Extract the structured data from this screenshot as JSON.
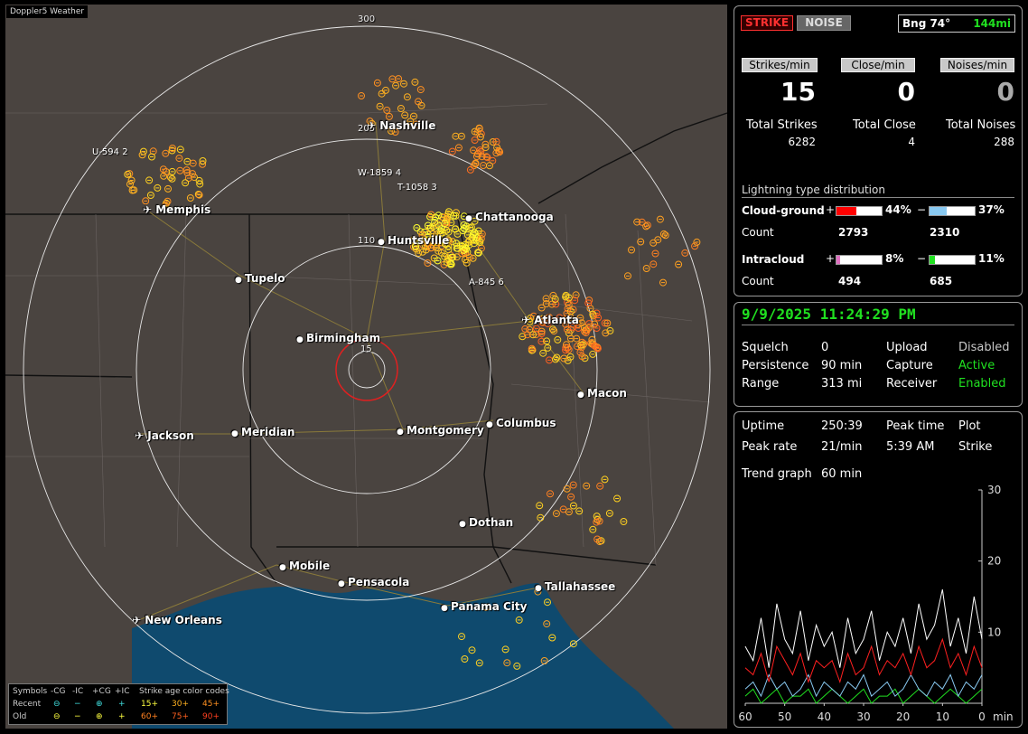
{
  "app_title": "Doppler5 Weather",
  "map": {
    "range_labels": [
      "300",
      "205",
      "110",
      "15"
    ],
    "cities": [
      {
        "name": "Nashville",
        "type": "airport"
      },
      {
        "name": "Memphis",
        "type": "airport"
      },
      {
        "name": "Chattanooga",
        "type": "city"
      },
      {
        "name": "Huntsville",
        "type": "city"
      },
      {
        "name": "Tupelo",
        "type": "city"
      },
      {
        "name": "Atlanta",
        "type": "airport"
      },
      {
        "name": "Birmingham",
        "type": "city"
      },
      {
        "name": "Macon",
        "type": "city"
      },
      {
        "name": "Jackson",
        "type": "airport"
      },
      {
        "name": "Meridian",
        "type": "city"
      },
      {
        "name": "Montgomery",
        "type": "city"
      },
      {
        "name": "Columbus",
        "type": "city"
      },
      {
        "name": "Dothan",
        "type": "city"
      },
      {
        "name": "Mobile",
        "type": "city"
      },
      {
        "name": "Pensacola",
        "type": "city"
      },
      {
        "name": "Tallahassee",
        "type": "city"
      },
      {
        "name": "Panama City",
        "type": "city"
      },
      {
        "name": "New Orleans",
        "type": "airport"
      }
    ],
    "storm_tags": [
      "U-594 2",
      "W-1859 4",
      "T-1058 3",
      "A-845 6"
    ]
  },
  "legend": {
    "headers": [
      "Symbols",
      "-CG",
      "-IC",
      "+CG",
      "+IC",
      "Strike age color codes"
    ],
    "rows": [
      {
        "label": "Recent",
        "ages": [
          "15+",
          "30+",
          "45+"
        ]
      },
      {
        "label": "Old",
        "ages": [
          "60+",
          "75+",
          "90+"
        ]
      }
    ]
  },
  "top_panel": {
    "strike_btn": "STRIKE",
    "noise_btn": "NOISE",
    "bearing_label": "Bng 74°",
    "bearing_range": "144mi",
    "headers": [
      "Strikes/min",
      "Close/min",
      "Noises/min"
    ],
    "rates": [
      "15",
      "0",
      "0"
    ],
    "totals_labels": [
      "Total Strikes",
      "Total Close",
      "Total Noises"
    ],
    "totals_values": [
      "6282",
      "4",
      "288"
    ],
    "dist_title": "Lightning type distribution",
    "cloud_ground_label": "Cloud-ground",
    "cg_pos_pct": "44%",
    "cg_neg_pct": "37%",
    "count_label": "Count",
    "cg_pos_count": "2793",
    "cg_neg_count": "2310",
    "intracloud_label": "Intracloud",
    "ic_pos_pct": "8%",
    "ic_neg_pct": "11%",
    "ic_pos_count": "494",
    "ic_neg_count": "685",
    "bars": {
      "cg_pos": 0.44,
      "cg_neg": 0.37,
      "ic_pos": 0.08,
      "ic_neg": 0.11
    },
    "colors": {
      "cg_pos": "#ff0000",
      "cg_neg": "#88c8f0",
      "ic_pos": "#e070c0",
      "ic_neg": "#20e020"
    }
  },
  "mid_panel": {
    "datetime": "9/9/2025 11:24:29 PM",
    "items": [
      {
        "label": "Squelch",
        "value": "0",
        "label2": "Upload",
        "value2": "Disabled",
        "color2": "#c8c8c8"
      },
      {
        "label": "Persistence",
        "value": "90 min",
        "label2": "Capture",
        "value2": "Active",
        "color2": "#20e020"
      },
      {
        "label": "Range",
        "value": "313 mi",
        "label2": "Receiver",
        "value2": "Enabled",
        "color2": "#20e020"
      }
    ]
  },
  "bot_panel": {
    "uptime_label": "Uptime",
    "uptime_value": "250:39",
    "peak_time_label": "Peak time",
    "plot_label": "Plot",
    "peak_rate_label": "Peak rate",
    "peak_rate_value": "21/min",
    "peak_time_value": "5:39 AM",
    "plot_value": "Strike",
    "trend_label": "Trend graph",
    "trend_value": "60 min",
    "y_ticks": [
      "30",
      "20",
      "10"
    ],
    "x_ticks": [
      "60",
      "50",
      "40",
      "30",
      "20",
      "10",
      "0"
    ],
    "x_unit": "min"
  },
  "chart_data": {
    "type": "line",
    "x": [
      60,
      58,
      56,
      54,
      52,
      50,
      48,
      46,
      44,
      42,
      40,
      38,
      36,
      34,
      32,
      30,
      28,
      26,
      24,
      22,
      20,
      18,
      16,
      14,
      12,
      10,
      8,
      6,
      4,
      2,
      0
    ],
    "series": [
      {
        "color": "#ffffff",
        "values": [
          8,
          6,
          12,
          5,
          14,
          9,
          7,
          13,
          6,
          11,
          8,
          10,
          5,
          12,
          7,
          9,
          13,
          6,
          10,
          8,
          12,
          7,
          14,
          9,
          11,
          16,
          8,
          12,
          7,
          15,
          9
        ]
      },
      {
        "color": "#ff2020",
        "values": [
          5,
          4,
          7,
          3,
          8,
          6,
          4,
          7,
          3,
          6,
          5,
          6,
          3,
          7,
          4,
          5,
          8,
          4,
          6,
          5,
          7,
          4,
          8,
          5,
          6,
          9,
          5,
          7,
          4,
          8,
          5
        ]
      },
      {
        "color": "#88c8f0",
        "values": [
          2,
          3,
          1,
          4,
          2,
          3,
          1,
          2,
          4,
          1,
          3,
          2,
          1,
          3,
          2,
          4,
          1,
          2,
          3,
          1,
          2,
          4,
          2,
          1,
          3,
          2,
          4,
          1,
          3,
          2,
          4
        ]
      },
      {
        "color": "#20e020",
        "values": [
          1,
          2,
          0,
          1,
          2,
          0,
          1,
          1,
          2,
          0,
          1,
          2,
          1,
          0,
          1,
          2,
          0,
          1,
          1,
          2,
          0,
          1,
          2,
          1,
          0,
          1,
          2,
          1,
          0,
          1,
          2
        ]
      }
    ],
    "ylim": [
      0,
      30
    ],
    "xlim": [
      60,
      0
    ]
  }
}
